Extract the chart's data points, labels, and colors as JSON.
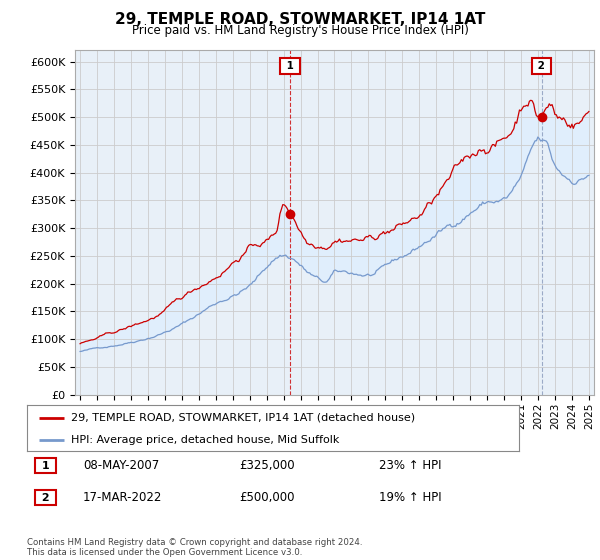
{
  "title": "29, TEMPLE ROAD, STOWMARKET, IP14 1AT",
  "subtitle": "Price paid vs. HM Land Registry's House Price Index (HPI)",
  "legend_line1": "29, TEMPLE ROAD, STOWMARKET, IP14 1AT (detached house)",
  "legend_line2": "HPI: Average price, detached house, Mid Suffolk",
  "annotation1_date": "08-MAY-2007",
  "annotation1_price": "£325,000",
  "annotation1_hpi": "23% ↑ HPI",
  "annotation2_date": "17-MAR-2022",
  "annotation2_price": "£500,000",
  "annotation2_hpi": "19% ↑ HPI",
  "footnote": "Contains HM Land Registry data © Crown copyright and database right 2024.\nThis data is licensed under the Open Government Licence v3.0.",
  "red_color": "#cc0000",
  "blue_color": "#7799cc",
  "fill_color": "#ddeeff",
  "ylim": [
    0,
    620000
  ],
  "yticks": [
    0,
    50000,
    100000,
    150000,
    200000,
    250000,
    300000,
    350000,
    400000,
    450000,
    500000,
    550000,
    600000
  ],
  "xlim_start": 1994.7,
  "xlim_end": 2025.3,
  "marker1_x": 2007.37,
  "marker1_y": 325000,
  "marker2_x": 2022.21,
  "marker2_y": 500000,
  "background_color": "#ffffff",
  "grid_color": "#cccccc",
  "chart_bg": "#e8f0f8"
}
